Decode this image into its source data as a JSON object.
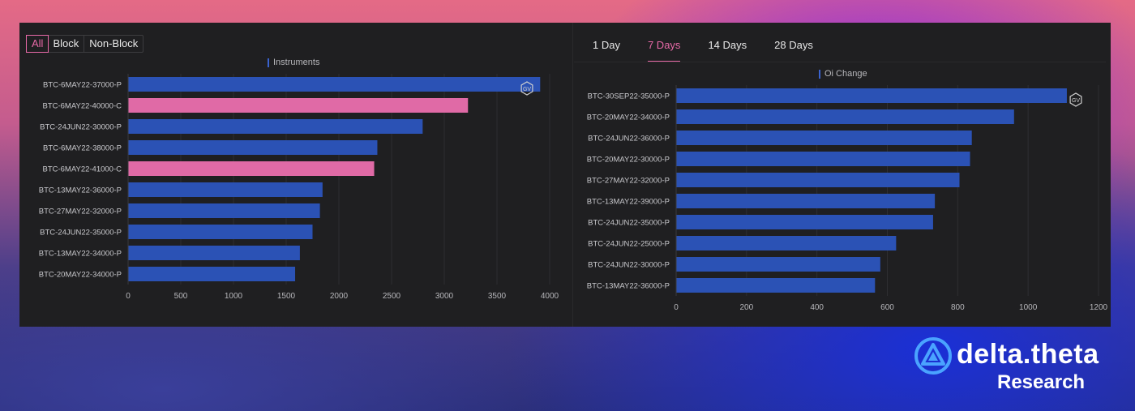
{
  "filters": {
    "options": [
      {
        "label": "All",
        "active": true
      },
      {
        "label": "Block",
        "active": false
      },
      {
        "label": "Non-Block",
        "active": false
      }
    ]
  },
  "periods": {
    "tabs": [
      {
        "label": "1 Day",
        "active": false
      },
      {
        "label": "7 Days",
        "active": true
      },
      {
        "label": "14 Days",
        "active": false
      },
      {
        "label": "28 Days",
        "active": false
      }
    ]
  },
  "colors": {
    "put": "#2b52b5",
    "call": "#e06aa6",
    "accent": "#e86aa8",
    "panel": "#1f1f21"
  },
  "watermark": "GV",
  "brand": {
    "name": "delta.theta",
    "sub": "Research",
    "icon": "delta-theta-logo-icon"
  },
  "chart_data": [
    {
      "type": "bar",
      "orientation": "horizontal",
      "legend": "Instruments",
      "categories": [
        "BTC-6MAY22-37000-P",
        "BTC-6MAY22-40000-C",
        "BTC-24JUN22-30000-P",
        "BTC-6MAY22-38000-P",
        "BTC-6MAY22-41000-C",
        "BTC-13MAY22-36000-P",
        "BTC-27MAY22-32000-P",
        "BTC-24JUN22-35000-P",
        "BTC-13MAY22-34000-P",
        "BTC-20MAY22-34000-P"
      ],
      "values": [
        3910,
        3225,
        2795,
        2365,
        2335,
        1845,
        1820,
        1750,
        1630,
        1585
      ],
      "xlim": [
        0,
        4000
      ],
      "ticks": [
        0,
        500,
        1000,
        1500,
        2000,
        2500,
        3000,
        3500,
        4000
      ]
    },
    {
      "type": "bar",
      "orientation": "horizontal",
      "legend": "Oi Change",
      "categories": [
        "BTC-30SEP22-35000-P",
        "BTC-20MAY22-34000-P",
        "BTC-24JUN22-36000-P",
        "BTC-20MAY22-30000-P",
        "BTC-27MAY22-32000-P",
        "BTC-13MAY22-39000-P",
        "BTC-24JUN22-35000-P",
        "BTC-24JUN22-25000-P",
        "BTC-24JUN22-30000-P",
        "BTC-13MAY22-36000-P"
      ],
      "values": [
        1110,
        960,
        840,
        835,
        805,
        735,
        730,
        625,
        580,
        565
      ],
      "xlim": [
        0,
        1200
      ],
      "ticks": [
        0,
        200,
        400,
        600,
        800,
        1000,
        1200
      ]
    }
  ]
}
